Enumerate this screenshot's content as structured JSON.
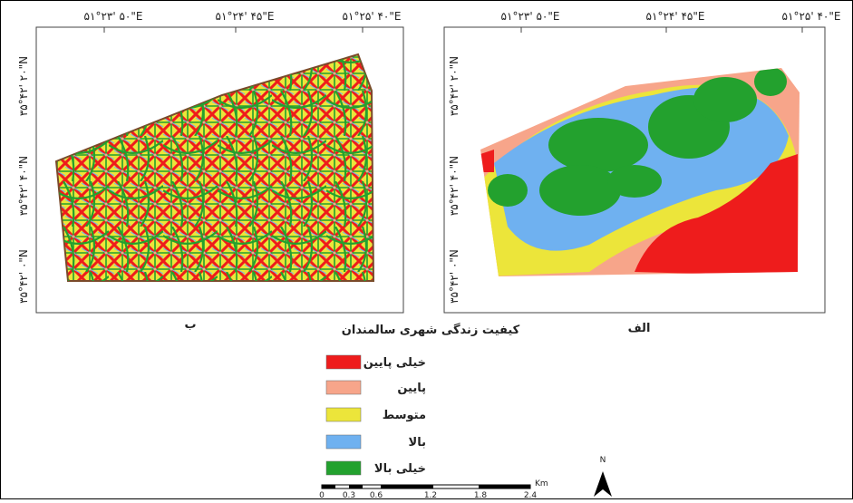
{
  "map": {
    "top_labels_left": [
      "۵۱°۲۳' ۵۰\"E",
      "۵۱°۲۴' ۴۵\"E",
      "۵۱°۲۵' ۴۰\"E"
    ],
    "top_labels_right": [
      "۵۱°۲۳' ۵۰\"E",
      "۵۱°۲۴' ۴۵\"E",
      "۵۱°۲۵' ۴۰\"E"
    ],
    "side_labels_left": [
      "۳۵°۴۲' ۲۰\"N",
      "۳۵°۴۲' ۴۰\"N",
      "۳۵°۴۲' ۰\"N"
    ],
    "side_labels_right": [
      "۳۵°۴۲' ۲۰\"N",
      "۳۵°۴۲' ۴۰\"N",
      "۳۵°۴۲' ۰\"N"
    ],
    "panel_left": "ب",
    "panel_right": "الف"
  },
  "legend": {
    "title": "کیفیت زندگی شهری سالمندان",
    "items": [
      {
        "label": "خیلی پایین",
        "color": "#ee1c1c"
      },
      {
        "label": "پایین",
        "color": "#f7a58a"
      },
      {
        "label": "متوسط",
        "color": "#ece53a"
      },
      {
        "label": "بالا",
        "color": "#6fb1f0"
      },
      {
        "label": "خیلی بالا",
        "color": "#23a12e"
      }
    ]
  },
  "scale_bar": {
    "ticks": [
      "0",
      "0.3",
      "0.6",
      "1.2",
      "1.8",
      "2.4"
    ],
    "unit": "Km"
  },
  "north": "N"
}
